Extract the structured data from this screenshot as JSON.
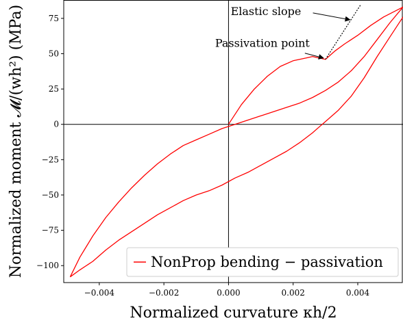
{
  "chart_data": {
    "type": "line",
    "title": "",
    "xlabel": "Normalized curvature κh/2",
    "ylabel": "Normalized moment 𝓜/(wh²) (MPa)",
    "xlim": [
      -0.0051,
      0.0054
    ],
    "ylim": [
      -112,
      88
    ],
    "x_ticks": [
      -0.004,
      -0.002,
      0.0,
      0.002,
      0.004
    ],
    "x_tick_labels": [
      "−0.004",
      "−0.002",
      "0.000",
      "0.002",
      "0.004"
    ],
    "y_ticks": [
      -100,
      -75,
      -50,
      -25,
      0,
      25,
      50,
      75
    ],
    "y_tick_labels": [
      "−100",
      "−75",
      "−50",
      "−25",
      "0",
      "25",
      "50",
      "75"
    ],
    "grid": false,
    "legend_placement": "lower-right",
    "colors": {
      "series": "#ff0000",
      "axes": "#000000",
      "elastic_slope": "#000000"
    },
    "series": [
      {
        "name": "NonProp bending − passivation",
        "x": [
          0.0,
          0.0004,
          0.0008,
          0.0012,
          0.0016,
          0.002,
          0.0024,
          0.0026,
          0.0028,
          0.003,
          0.0033,
          0.0036,
          0.004,
          0.0044,
          0.0048,
          0.0054
        ],
        "y": [
          0,
          14,
          25,
          34,
          41,
          45,
          47,
          48,
          47,
          46,
          52,
          57,
          63,
          70,
          76,
          83
        ]
      },
      {
        "name": "",
        "x": [
          0.0054,
          0.005,
          0.0046,
          0.0042,
          0.0038,
          0.0034,
          0.003,
          0.0026,
          0.0022,
          0.0018,
          0.0014,
          0.001,
          0.0006,
          0.0002,
          -0.0002,
          -0.0006,
          -0.001,
          -0.0014,
          -0.0018,
          -0.0022,
          -0.0026,
          -0.003,
          -0.0034,
          -0.0038,
          -0.0042,
          -0.0046,
          -0.0049
        ],
        "y": [
          83,
          72,
          60,
          48,
          38,
          30,
          24,
          19,
          15,
          12,
          9,
          6,
          3,
          0,
          -3,
          -7,
          -11,
          -15,
          -21,
          -28,
          -36,
          -45,
          -55,
          -66,
          -79,
          -94,
          -108
        ]
      },
      {
        "name": "",
        "x": [
          -0.0049,
          -0.0046,
          -0.0042,
          -0.0038,
          -0.0034,
          -0.003,
          -0.0026,
          -0.0022,
          -0.0018,
          -0.0014,
          -0.001,
          -0.0006,
          -0.0002,
          0.0002,
          0.0006,
          0.001,
          0.0014,
          0.0018,
          0.0022,
          0.0026,
          0.0028,
          0.003,
          0.0034,
          0.0038,
          0.0042,
          0.0046,
          0.005,
          0.0054
        ],
        "y": [
          -108,
          -103,
          -97,
          -89,
          -82,
          -76,
          -70,
          -64,
          -59,
          -54,
          -50,
          -47,
          -43,
          -38,
          -34,
          -29,
          -24,
          -19,
          -13,
          -6,
          -2,
          2,
          10,
          20,
          33,
          48,
          62,
          76
        ]
      }
    ],
    "elastic_slope_line": {
      "x": [
        0.003,
        0.0041
      ],
      "y": [
        46,
        85
      ]
    },
    "annotations": [
      {
        "text": "Elastic slope",
        "target_x": 0.0038,
        "target_y": 74
      },
      {
        "text": "Passivation point",
        "target_x": 0.003,
        "target_y": 46
      }
    ]
  }
}
